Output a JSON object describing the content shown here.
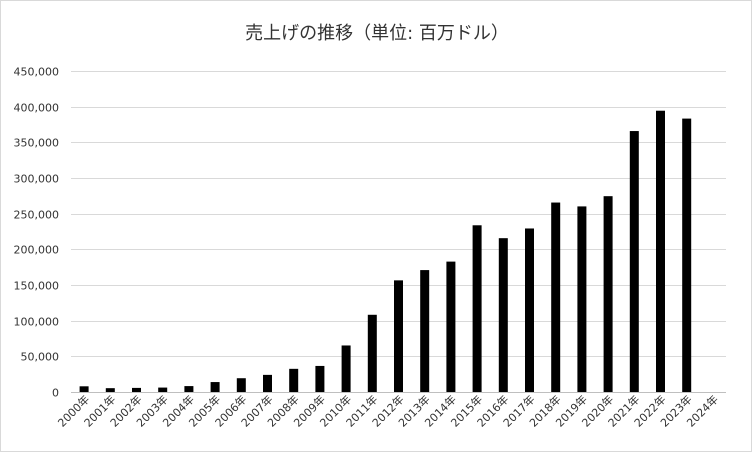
{
  "chart_data": {
    "type": "bar",
    "title": "売上げの推移（単位: 百万ドル）",
    "xlabel": "",
    "ylabel": "",
    "ylim": [
      0,
      450000
    ],
    "yticks": [
      0,
      50000,
      100000,
      150000,
      200000,
      250000,
      300000,
      350000,
      400000,
      450000
    ],
    "ytick_labels": [
      "0",
      "50,000",
      "100,000",
      "150,000",
      "200,000",
      "250,000",
      "300,000",
      "350,000",
      "400,000",
      "450,000"
    ],
    "grid": true,
    "legend": "none",
    "bar_color": "#000000",
    "categories": [
      "2000年",
      "2001年",
      "2002年",
      "2003年",
      "2004年",
      "2005年",
      "2006年",
      "2007年",
      "2008年",
      "2009年",
      "2010年",
      "2011年",
      "2012年",
      "2013年",
      "2014年",
      "2015年",
      "2016年",
      "2017年",
      "2018年",
      "2019年",
      "2020年",
      "2021年",
      "2022年",
      "2023年",
      "2024年"
    ],
    "values": [
      7983,
      5363,
      5742,
      6207,
      8279,
      13931,
      19315,
      24006,
      32479,
      36537,
      65225,
      108249,
      156508,
      170910,
      182795,
      233715,
      215639,
      229234,
      265595,
      260174,
      274515,
      365817,
      394328,
      383285,
      null
    ]
  }
}
